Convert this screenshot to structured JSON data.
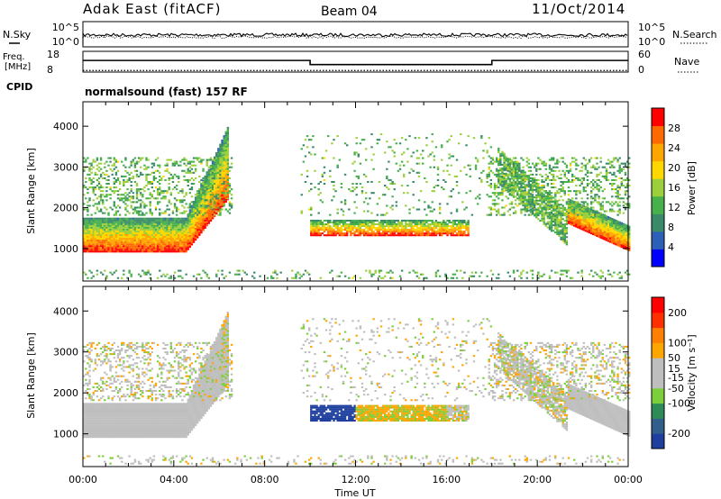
{
  "header": {
    "station": "Adak East (fitACF)",
    "beam": "Beam 04",
    "date": "11/Oct/2014"
  },
  "top_panels": {
    "nsky_label": "N.Sky",
    "nsearch_label": "N.Search",
    "nsky_ticks": [
      "10^5",
      "10^0"
    ],
    "nsearch_ticks": [
      "10^5",
      "10^0"
    ],
    "freq_label_1": "Freq.",
    "freq_label_2": "[MHz]",
    "freq_ticks": [
      "18",
      "8"
    ],
    "nave_label": "Nave",
    "nave_ticks": [
      "60",
      "0"
    ],
    "cpid_label": "CPID",
    "cpid_text": "normalsound (fast) 157 RF"
  },
  "chart_data": [
    {
      "type": "line",
      "name": "frequency",
      "x_range": [
        0,
        24
      ],
      "ylim": [
        8,
        18
      ],
      "segments": [
        {
          "x": [
            0.0,
            10.0
          ],
          "y": 13.6
        },
        {
          "x": [
            10.0,
            18.0
          ],
          "y": 11.6
        },
        {
          "x": [
            18.0,
            24.0
          ],
          "y": 13.6
        }
      ],
      "nave_level": 2
    },
    {
      "type": "heatmap",
      "name": "power",
      "xlabel": "Time UT",
      "ylabel": "Slant Range [km]",
      "xlim": [
        0,
        24
      ],
      "ylim": [
        200,
        4600
      ],
      "x_ticks": [
        "00:00",
        "04:00",
        "08:00",
        "12:00",
        "16:00",
        "20:00",
        "00:00"
      ],
      "y_ticks": [
        1000,
        2000,
        3000,
        4000
      ],
      "colorbar": {
        "label": "Power [dB]",
        "range": [
          0,
          32
        ],
        "ticks": [
          4,
          8,
          12,
          16,
          20,
          24,
          28
        ],
        "colors": [
          "#0000ff",
          "#2b5fb8",
          "#3a8a6a",
          "#46b04a",
          "#9ccf3c",
          "#ffd700",
          "#ffa500",
          "#ff6a00",
          "#ff0000"
        ]
      }
    },
    {
      "type": "heatmap",
      "name": "velocity",
      "xlabel": "Time UT",
      "ylabel": "Slant Range [km]",
      "xlim": [
        0,
        24
      ],
      "ylim": [
        200,
        4600
      ],
      "x_ticks": [
        "00:00",
        "04:00",
        "08:00",
        "12:00",
        "16:00",
        "20:00",
        "00:00"
      ],
      "y_ticks": [
        1000,
        2000,
        3000,
        4000
      ],
      "colorbar": {
        "label": "Velocity [m s⁻¹]",
        "range": [
          -250,
          250
        ],
        "ticks": [
          200,
          100,
          50,
          15,
          -15,
          -50,
          -100,
          -200
        ],
        "colors": [
          "#1e3f9e",
          "#2f5f8a",
          "#2e8b57",
          "#7ccf3a",
          "#bebebe",
          "#bebebe",
          "#ffa500",
          "#ff7f00",
          "#ff3000",
          "#ff0000"
        ]
      }
    }
  ]
}
